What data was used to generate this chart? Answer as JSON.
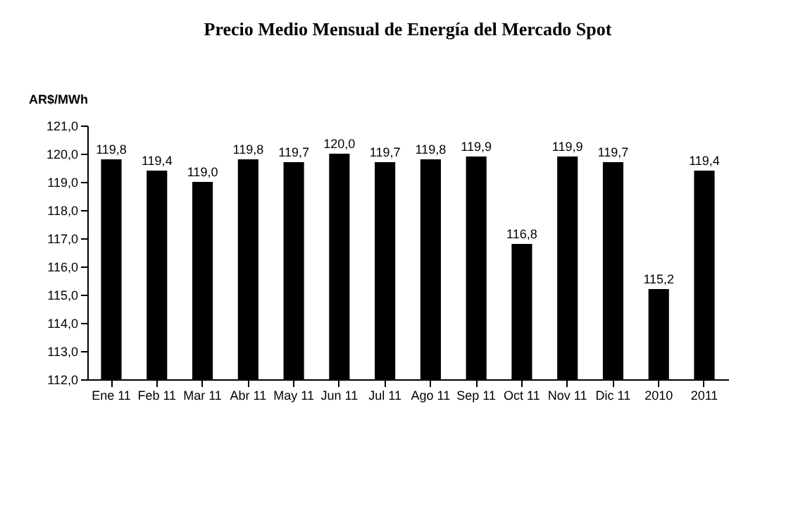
{
  "chart_data": {
    "type": "bar",
    "title": "Precio Medio Mensual de Energía del Mercado Spot",
    "ylabel": "AR$/MWh",
    "categories": [
      "Ene 11",
      "Feb 11",
      "Mar 11",
      "Abr 11",
      "May 11",
      "Jun 11",
      "Jul 11",
      "Ago 11",
      "Sep 11",
      "Oct 11",
      "Nov 11",
      "Dic 11",
      "2010",
      "2011"
    ],
    "values": [
      119.8,
      119.4,
      119.0,
      119.8,
      119.7,
      120.0,
      119.7,
      119.8,
      119.9,
      116.8,
      119.9,
      119.7,
      115.2,
      119.4
    ],
    "value_labels": [
      "119,8",
      "119,4",
      "119,0",
      "119,8",
      "119,7",
      "120,0",
      "119,7",
      "119,8",
      "119,9",
      "116,8",
      "119,9",
      "119,7",
      "115,2",
      "119,4"
    ],
    "color": "#000000",
    "ylim": [
      112,
      121
    ],
    "yticks": [
      {
        "value": 112,
        "label": "112,0"
      },
      {
        "value": 113,
        "label": "113,0"
      },
      {
        "value": 114,
        "label": "114,0"
      },
      {
        "value": 115,
        "label": "115,0"
      },
      {
        "value": 116,
        "label": "116,0"
      },
      {
        "value": 117,
        "label": "117,0"
      },
      {
        "value": 118,
        "label": "118,0"
      },
      {
        "value": 119,
        "label": "119,0"
      },
      {
        "value": 120,
        "label": "120,0"
      },
      {
        "value": 121,
        "label": "121,0"
      }
    ],
    "grid": false
  }
}
